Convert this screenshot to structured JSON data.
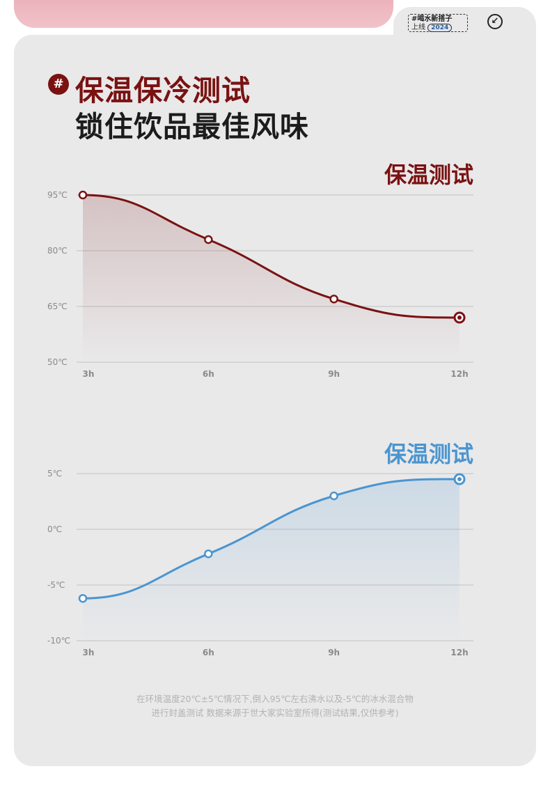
{
  "header": {
    "badge_line1": "#喝水新搭子",
    "badge_line2": "上线",
    "badge_year": "2024",
    "share_icon": "arrow-down-left-icon"
  },
  "headline": {
    "hash": "#",
    "line1": "保温保冷测试",
    "line2": "锁住饮品最佳风味"
  },
  "colors": {
    "hot": "#7a1212",
    "cold": "#4b95cf"
  },
  "chart_data": [
    {
      "type": "line",
      "title": "保温测试",
      "categories": [
        "3h",
        "6h",
        "9h",
        "12h"
      ],
      "yticks": [
        "95℃",
        "80℃",
        "65℃",
        "50℃"
      ],
      "ylim": [
        50,
        95
      ],
      "values": [
        95,
        83,
        67,
        62
      ],
      "grid": true
    },
    {
      "type": "line",
      "title": "保温测试",
      "categories": [
        "3h",
        "6h",
        "9h",
        "12h"
      ],
      "yticks": [
        "5℃",
        "0℃",
        "-5℃",
        "-10℃"
      ],
      "ylim": [
        -10,
        5
      ],
      "values": [
        -6.2,
        -2.2,
        3,
        4.5
      ],
      "grid": true
    }
  ],
  "footnote": {
    "line1": "在环境温度20℃±5℃情况下,倒入95℃左右沸水以及-5℃的冰水混合物",
    "line2": "进行封盖测试 数据来源于世大家实验室所得(测试结果,仅供参考)"
  }
}
